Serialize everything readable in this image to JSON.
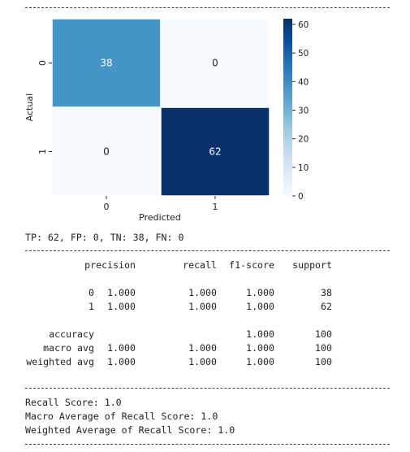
{
  "chart_data": {
    "type": "heatmap",
    "matrix": [
      [
        38,
        0
      ],
      [
        0,
        62
      ]
    ],
    "row_labels": [
      "0",
      "1"
    ],
    "col_labels": [
      "0",
      "1"
    ],
    "xlabel": "Predicted",
    "ylabel": "Actual",
    "colormap": "Blues",
    "colorbar": {
      "min": 0,
      "max": 62,
      "ticks": [
        0,
        10,
        20,
        30,
        40,
        50,
        60
      ]
    },
    "annotate": true
  },
  "summary_line": "TP: 62, FP: 0, TN: 38, FN: 0",
  "report": {
    "headers": [
      "precision",
      "recall",
      "f1-score",
      "support"
    ],
    "rows": [
      {
        "label": "0",
        "values": [
          "1.000",
          "1.000",
          "1.000",
          "38"
        ]
      },
      {
        "label": "1",
        "values": [
          "1.000",
          "1.000",
          "1.000",
          "62"
        ]
      },
      {
        "label": "accuracy",
        "values": [
          "",
          "",
          "1.000",
          "100"
        ]
      },
      {
        "label": "macro avg",
        "values": [
          "1.000",
          "1.000",
          "1.000",
          "100"
        ]
      },
      {
        "label": "weighted avg",
        "values": [
          "1.000",
          "1.000",
          "1.000",
          "100"
        ]
      }
    ]
  },
  "scores": {
    "recall": "Recall Score: 1.0",
    "macro": "Macro Average of Recall Score: 1.0",
    "weighted": "Weighted Average of Recall Score: 1.0"
  }
}
